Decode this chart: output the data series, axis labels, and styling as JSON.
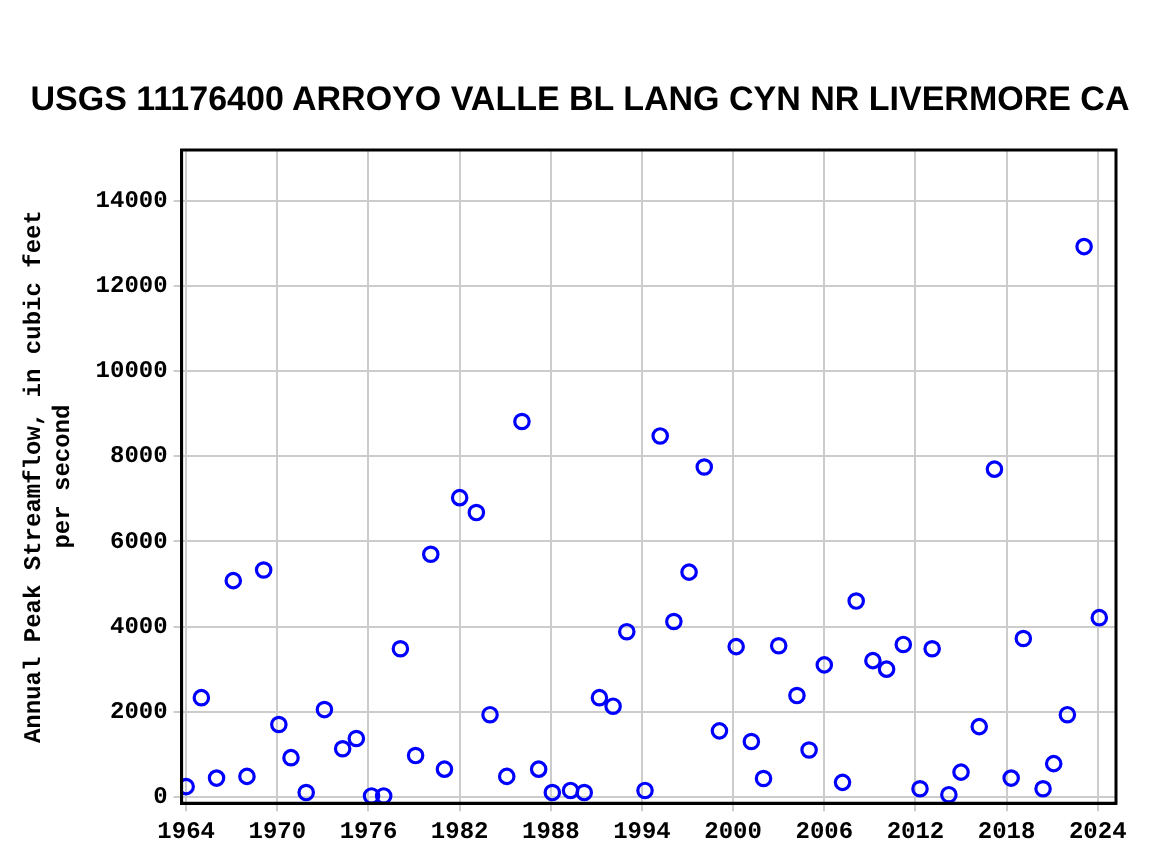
{
  "chart_data": {
    "type": "scatter",
    "title": "USGS 11176400 ARROYO VALLE BL LANG CYN NR LIVERMORE CA",
    "ylabel": "Annual Peak Streamflow, in cubic feet per second",
    "x": [
      1964.0,
      1965.0,
      1966.0,
      1967.1,
      1968.0,
      1969.1,
      1970.1,
      1970.9,
      1971.9,
      1973.1,
      1974.3,
      1975.2,
      1976.2,
      1977.0,
      1978.1,
      1979.1,
      1980.1,
      1981.0,
      1982.0,
      1983.1,
      1984.0,
      1985.1,
      1986.1,
      1987.2,
      1988.1,
      1989.3,
      1990.2,
      1991.2,
      1992.1,
      1993.0,
      1994.2,
      1995.2,
      1996.1,
      1997.1,
      1998.1,
      1999.1,
      2000.2,
      2001.2,
      2002.0,
      2003.0,
      2004.2,
      2005.0,
      2006.0,
      2007.2,
      2008.1,
      2009.2,
      2010.1,
      2011.2,
      2012.3,
      2013.1,
      2014.2,
      2015.0,
      2016.2,
      2017.2,
      2018.3,
      2019.1,
      2020.4,
      2021.1,
      2022.0,
      2023.1,
      2024.1
    ],
    "series": [
      {
        "color": "#0000ff",
        "values": [
          240,
          2330,
          440,
          5080,
          480,
          5330,
          1700,
          920,
          100,
          2050,
          1130,
          1370,
          20,
          20,
          3480,
          970,
          5700,
          650,
          7030,
          6680,
          1930,
          480,
          8820,
          650,
          100,
          150,
          100,
          2330,
          2130,
          3880,
          150,
          8480,
          4120,
          5280,
          7750,
          1550,
          3530,
          1300,
          430,
          3550,
          2380,
          1100,
          3100,
          340,
          4600,
          3200,
          3000,
          3580,
          190,
          3480,
          50,
          580,
          1650,
          7700,
          440,
          3720,
          190,
          780,
          1930,
          12930,
          4210
        ]
      }
    ],
    "xlim": [
      1963.7,
      2025.2
    ],
    "xticks": [
      1964,
      1970,
      1976,
      1982,
      1988,
      1994,
      2000,
      2006,
      2012,
      2018,
      2024
    ],
    "ylim": [
      -150,
      15200
    ],
    "yticks": [
      0,
      2000,
      4000,
      6000,
      8000,
      10000,
      12000,
      14000
    ],
    "grid": true,
    "legend": false,
    "marker": "circle"
  }
}
